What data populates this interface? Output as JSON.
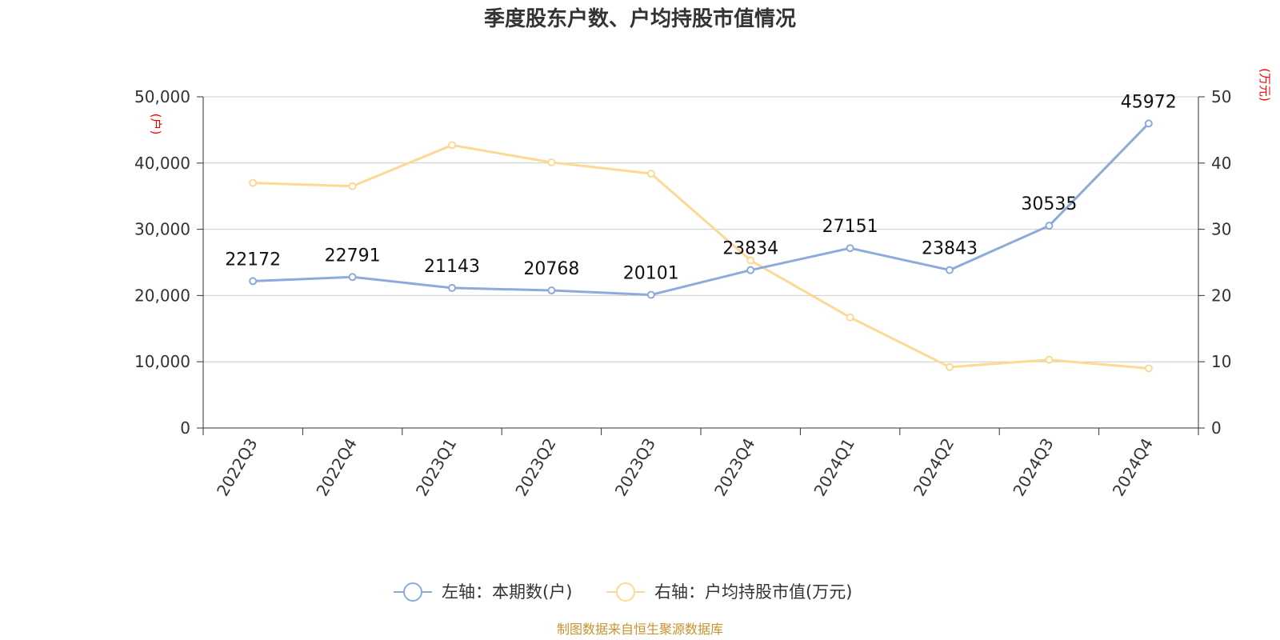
{
  "chart_data": {
    "type": "line",
    "title": "季度股东户数、户均持股市值情况",
    "categories": [
      "2022Q3",
      "2022Q4",
      "2023Q1",
      "2023Q2",
      "2023Q3",
      "2023Q4",
      "2024Q1",
      "2024Q2",
      "2024Q3",
      "2024Q4"
    ],
    "y_left": {
      "unit": "(户)",
      "ylim": [
        0,
        50000
      ],
      "ticks": [
        "0",
        "10,000",
        "20,000",
        "30,000",
        "40,000",
        "50,000"
      ]
    },
    "y_right": {
      "unit": "(万元)",
      "ylim": [
        0,
        50
      ],
      "ticks": [
        "0",
        "10",
        "20",
        "30",
        "40",
        "50"
      ]
    },
    "series": [
      {
        "name": "左轴：本期数(户)",
        "axis": "left",
        "color": "#8eaadb",
        "values": [
          22172,
          22791,
          21143,
          20768,
          20101,
          23834,
          27151,
          23843,
          30535,
          45972
        ],
        "data_labels": [
          "22172",
          "22791",
          "21143",
          "20768",
          "20101",
          "23834",
          "27151",
          "23843",
          "30535",
          "45972"
        ]
      },
      {
        "name": "右轴：户均持股市值(万元)",
        "axis": "right",
        "color": "#fcd994",
        "values": [
          37.0,
          36.5,
          42.7,
          40.1,
          38.4,
          25.3,
          16.7,
          9.2,
          10.3,
          9.0
        ]
      }
    ],
    "grid": true,
    "legend_position": "bottom-center",
    "source": "制图数据来自恒生聚源数据库"
  }
}
